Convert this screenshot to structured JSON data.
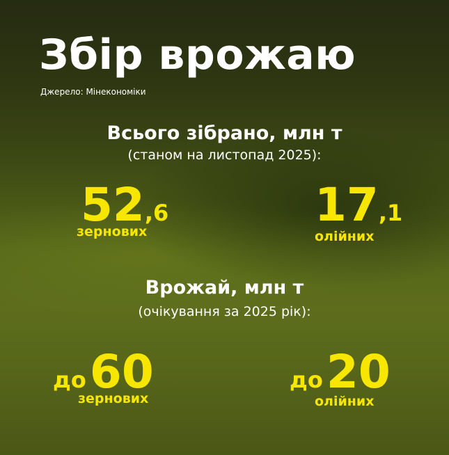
{
  "header": {
    "title": "Збір врожаю",
    "source": "Джерело: Мінекономіки"
  },
  "harvested": {
    "heading": "Всього зібрано, млн т",
    "note": "(станом на листопад 2025):",
    "items": [
      {
        "whole": "52",
        "fraction": ",6",
        "label": "зернових"
      },
      {
        "whole": "17",
        "fraction": ",1",
        "label": "олійних"
      }
    ]
  },
  "forecast": {
    "heading": "Врожай, млн т",
    "note": "(очікування за 2025 рік):",
    "items": [
      {
        "prefix": "до",
        "value": "60",
        "label": "зернових"
      },
      {
        "prefix": "до",
        "value": "20",
        "label": "олійних"
      }
    ]
  }
}
